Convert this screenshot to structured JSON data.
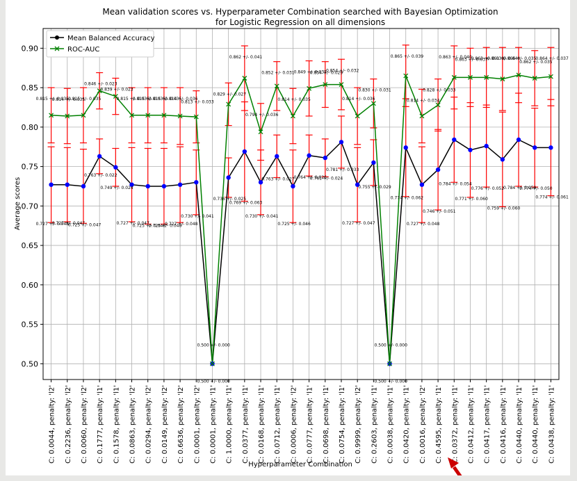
{
  "chart_data": {
    "type": "line",
    "title": "Mean validation scores vs. Hyperparameter Combination searched with Bayesian Optimization",
    "subtitle": "for Logistic Regression on all dimensions",
    "xlabel": "Hyperparameter Combination",
    "ylabel": "Average scores",
    "ylim": [
      0.48,
      0.925
    ],
    "yticks": [
      "0.50",
      "0.55",
      "0.60",
      "0.65",
      "0.70",
      "0.75",
      "0.80",
      "0.85",
      "0.90"
    ],
    "grid": true,
    "legend_position": "top-left",
    "categories": [
      "C: 0.0044, penalty: 'l2'",
      "C: 0.2236, penalty: 'l2'",
      "C: 0.0060, penalty: 'l2'",
      "C: 0.1777, penalty: 'l1'",
      "C: 0.1578, penalty: 'l1'",
      "C: 0.0863, penalty: 'l2'",
      "C: 0.0294, penalty: 'l2'",
      "C: 0.0149, penalty: 'l2'",
      "C: 0.6636, penalty: 'l2'",
      "C: 0.0001, penalty: 'l2'",
      "C: 0.0001, penalty: 'l1'",
      "C: 1.0000, penalty: 'l1'",
      "C: 0.0377, penalty: 'l1'",
      "C: 0.0168, penalty: 'l1'",
      "C: 0.0712, penalty: 'l1'",
      "C: 0.0006, penalty: 'l2'",
      "C: 0.0777, penalty: 'l1'",
      "C: 0.0698, penalty: 'l1'",
      "C: 0.0754, penalty: 'l1'",
      "C: 0.9999, penalty: 'l2'",
      "C: 0.2603, penalty: 'l1'",
      "C: 0.0038, penalty: 'l1'",
      "C: 0.0420, penalty: 'l1'",
      "C: 0.0016, penalty: 'l2'",
      "C: 0.4595, penalty: 'l1'",
      "C: 0.0372, penalty: 'l1'",
      "C: 0.0412, penalty: 'l1'",
      "C: 0.0417, penalty: 'l1'",
      "C: 0.0416, penalty: 'l1'",
      "C: 0.0440, penalty: 'l1'",
      "C: 0.0440, penalty: 'l1'",
      "C: 0.0438, penalty: 'l1'"
    ],
    "series": [
      {
        "name": "Mean Balanced Accuracy",
        "color": "#000000",
        "marker_color": "#0000ff",
        "values": [
          0.727,
          0.727,
          0.725,
          0.763,
          0.749,
          0.727,
          0.725,
          0.725,
          0.727,
          0.73,
          0.5,
          0.736,
          0.769,
          0.73,
          0.763,
          0.725,
          0.764,
          0.761,
          0.781,
          0.727,
          0.755,
          0.5,
          0.774,
          0.727,
          0.746,
          0.784,
          0.771,
          0.776,
          0.759,
          0.784,
          0.774,
          0.774
        ],
        "errors": [
          0.048,
          0.047,
          0.047,
          0.022,
          0.024,
          0.047,
          0.048,
          0.048,
          0.048,
          0.041,
          0.0,
          0.025,
          0.063,
          0.041,
          0.027,
          0.046,
          0.026,
          0.024,
          0.033,
          0.047,
          0.029,
          0.0,
          0.062,
          0.048,
          0.051,
          0.054,
          0.06,
          0.052,
          0.06,
          0.059,
          0.05,
          0.061
        ],
        "labels": [
          "0.727 +/- 0.048",
          "0.727 +/- 0.047",
          "0.725 +/- 0.047",
          "0.763 +/- 0.022",
          "0.749 +/- 0.024",
          "0.727 +/- 0.047",
          "0.725 +/- 0.048",
          "0.725 +/- 0.048",
          "0.727 +/- 0.048",
          "0.730 +/- 0.041",
          "0.500 +/- 0.000",
          "0.736 +/- 0.025",
          "0.769 +/- 0.063",
          "0.730 +/- 0.041",
          "0.763 +/- 0.027",
          "0.725 +/- 0.046",
          "0.764 +/- 0.026",
          "0.761 +/- 0.024",
          "0.781 +/- 0.033",
          "0.727 +/- 0.047",
          "0.755 +/- 0.029",
          "0.500 +/- 0.000",
          "0.774 +/- 0.062",
          "0.727 +/- 0.048",
          "0.746 +/- 0.051",
          "0.784 +/- 0.054",
          "0.771 +/- 0.060",
          "0.776 +/- 0.052",
          "0.759 +/- 0.060",
          "0.784 +/- 0.059",
          "0.774 +/- 0.050",
          "0.774 +/- 0.061"
        ]
      },
      {
        "name": "ROC-AUC",
        "color": "#008000",
        "marker_color": "#008000",
        "values": [
          0.815,
          0.814,
          0.815,
          0.846,
          0.839,
          0.815,
          0.815,
          0.815,
          0.814,
          0.813,
          0.5,
          0.829,
          0.862,
          0.794,
          0.852,
          0.814,
          0.849,
          0.854,
          0.854,
          0.814,
          0.83,
          0.5,
          0.865,
          0.814,
          0.828,
          0.863,
          0.863,
          0.863,
          0.861,
          0.866,
          0.862,
          0.864
        ],
        "errors": [
          0.035,
          0.035,
          0.035,
          0.023,
          0.023,
          0.035,
          0.035,
          0.035,
          0.036,
          0.033,
          0.0,
          0.027,
          0.041,
          0.036,
          0.031,
          0.035,
          0.035,
          0.029,
          0.032,
          0.036,
          0.031,
          0.0,
          0.039,
          0.034,
          0.033,
          0.04,
          0.037,
          0.038,
          0.04,
          0.035,
          0.035,
          0.037
        ],
        "labels": [
          "0.815 +/- 0.035",
          "0.814 +/- 0.035",
          "0.815 +/- 0.035",
          "0.846 +/- 0.023",
          "0.839 +/- 0.023",
          "0.815 +/- 0.035",
          "0.815 +/- 0.035",
          "0.815 +/- 0.035",
          "0.814 +/- 0.036",
          "0.813 +/- 0.033",
          "0.500 +/- 0.000",
          "0.829 +/- 0.027",
          "0.862 +/- 0.041",
          "0.794 +/- 0.036",
          "0.852 +/- 0.031",
          "0.814 +/- 0.035",
          "0.849 +/- 0.035",
          "0.854 +/- 0.029",
          "0.854 +/- 0.032",
          "0.814 +/- 0.036",
          "0.830 +/- 0.031",
          "0.500 +/- 0.000",
          "0.865 +/- 0.039",
          "0.814 +/- 0.034",
          "0.828 +/- 0.033",
          "0.863 +/- 0.040",
          "0.863 +/- 0.037",
          "0.863 +/- 0.038",
          "0.861 +/- 0.040",
          "0.866 +/- 0.035",
          "0.862 +/- 0.035",
          "0.864 +/- 0.037"
        ]
      }
    ],
    "errorbar_color": "#ff0000"
  },
  "overlay": {
    "arrow_color": "#cc0000"
  }
}
